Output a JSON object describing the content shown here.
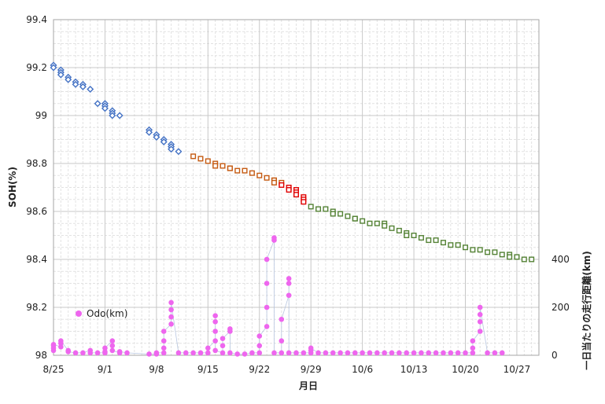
{
  "chart_data": {
    "type": "scatter",
    "xlabel": "月日",
    "ylabel": "SOH(%)",
    "y2label": "一日当たりの走行距離(km)",
    "x_range": [
      "8/25",
      "10/30"
    ],
    "x_tick_labels": [
      "8/25",
      "9/1",
      "9/8",
      "9/15",
      "9/22",
      "9/29",
      "10/6",
      "10/13",
      "10/20",
      "10/27"
    ],
    "ylim": [
      98,
      99.4
    ],
    "y_tick_labels": [
      "98",
      "98.2",
      "98.4",
      "98.6",
      "98.8",
      "99",
      "99.2",
      "99.4"
    ],
    "y2lim": [
      0,
      1400
    ],
    "y2_tick_labels": [
      "0",
      "200",
      "400"
    ],
    "grid": true,
    "legend": {
      "position": "bottom-left",
      "label": "Odo(km)"
    },
    "colors": {
      "soh_blue": "#4472c4",
      "soh_orange": "#c55a11",
      "soh_red": "#e00000",
      "soh_green": "#548235",
      "odo": "#ee66ee",
      "grid_major": "#c8c8c8",
      "grid_minor": "#e2e2e2"
    },
    "soh_series": [
      {
        "color": "blue",
        "points": [
          [
            "8/25",
            99.21
          ],
          [
            "8/25",
            99.2
          ],
          [
            "8/26",
            99.19
          ],
          [
            "8/26",
            99.18
          ],
          [
            "8/26",
            99.17
          ],
          [
            "8/27",
            99.16
          ],
          [
            "8/27",
            99.15
          ],
          [
            "8/28",
            99.14
          ],
          [
            "8/28",
            99.13
          ],
          [
            "8/29",
            99.13
          ],
          [
            "8/29",
            99.12
          ],
          [
            "8/30",
            99.11
          ],
          [
            "8/31",
            99.05
          ],
          [
            "9/1",
            99.05
          ],
          [
            "9/1",
            99.04
          ],
          [
            "9/1",
            99.03
          ],
          [
            "9/2",
            99.02
          ],
          [
            "9/2",
            99.01
          ],
          [
            "9/2",
            99.0
          ],
          [
            "9/3",
            99.0
          ],
          [
            "9/7",
            98.94
          ],
          [
            "9/7",
            98.93
          ],
          [
            "9/8",
            98.92
          ],
          [
            "9/8",
            98.91
          ],
          [
            "9/9",
            98.9
          ],
          [
            "9/9",
            98.89
          ],
          [
            "9/10",
            98.88
          ],
          [
            "9/10",
            98.87
          ],
          [
            "9/10",
            98.86
          ],
          [
            "9/11",
            98.85
          ]
        ]
      },
      {
        "color": "orange",
        "points": [
          [
            "9/13",
            98.83
          ],
          [
            "9/14",
            98.82
          ],
          [
            "9/15",
            98.81
          ],
          [
            "9/16",
            98.8
          ],
          [
            "9/16",
            98.79
          ],
          [
            "9/17",
            98.79
          ],
          [
            "9/18",
            98.78
          ],
          [
            "9/18",
            98.78
          ],
          [
            "9/19",
            98.77
          ],
          [
            "9/20",
            98.77
          ],
          [
            "9/21",
            98.76
          ],
          [
            "9/22",
            98.75
          ],
          [
            "9/23",
            98.74
          ],
          [
            "9/24",
            98.73
          ],
          [
            "9/24",
            98.73
          ],
          [
            "9/24",
            98.72
          ],
          [
            "9/25",
            98.72
          ]
        ]
      },
      {
        "color": "red",
        "points": [
          [
            "9/25",
            98.71
          ],
          [
            "9/26",
            98.7
          ],
          [
            "9/26",
            98.69
          ],
          [
            "9/27",
            98.69
          ],
          [
            "9/27",
            98.68
          ],
          [
            "9/27",
            98.67
          ],
          [
            "9/28",
            98.66
          ],
          [
            "9/28",
            98.65
          ],
          [
            "9/28",
            98.64
          ]
        ]
      },
      {
        "color": "green",
        "points": [
          [
            "9/29",
            98.62
          ],
          [
            "9/30",
            98.61
          ],
          [
            "10/1",
            98.61
          ],
          [
            "10/2",
            98.6
          ],
          [
            "10/2",
            98.59
          ],
          [
            "10/3",
            98.59
          ],
          [
            "10/4",
            98.58
          ],
          [
            "10/5",
            98.57
          ],
          [
            "10/5",
            98.57
          ],
          [
            "10/6",
            98.56
          ],
          [
            "10/7",
            98.55
          ],
          [
            "10/8",
            98.55
          ],
          [
            "10/9",
            98.55
          ],
          [
            "10/9",
            98.54
          ],
          [
            "10/10",
            98.53
          ],
          [
            "10/11",
            98.52
          ],
          [
            "10/12",
            98.51
          ],
          [
            "10/12",
            98.5
          ],
          [
            "10/13",
            98.5
          ],
          [
            "10/14",
            98.49
          ],
          [
            "10/15",
            98.48
          ],
          [
            "10/16",
            98.48
          ],
          [
            "10/17",
            98.47
          ],
          [
            "10/18",
            98.46
          ],
          [
            "10/19",
            98.46
          ],
          [
            "10/20",
            98.45
          ],
          [
            "10/21",
            98.44
          ],
          [
            "10/22",
            98.44
          ],
          [
            "10/23",
            98.43
          ],
          [
            "10/24",
            98.43
          ],
          [
            "10/25",
            98.42
          ],
          [
            "10/26",
            98.42
          ],
          [
            "10/26",
            98.41
          ],
          [
            "10/27",
            98.41
          ],
          [
            "10/27",
            98.41
          ],
          [
            "10/28",
            98.4
          ],
          [
            "10/29",
            98.4
          ]
        ]
      }
    ],
    "odo_series": {
      "name": "Odo(km)",
      "points": [
        [
          "8/25",
          20
        ],
        [
          "8/25",
          30
        ],
        [
          "8/25",
          40
        ],
        [
          "8/25",
          45
        ],
        [
          "8/26",
          35
        ],
        [
          "8/26",
          50
        ],
        [
          "8/26",
          60
        ],
        [
          "8/27",
          20
        ],
        [
          "8/27",
          15
        ],
        [
          "8/28",
          10
        ],
        [
          "8/29",
          10
        ],
        [
          "8/30",
          20
        ],
        [
          "8/30",
          10
        ],
        [
          "8/31",
          10
        ],
        [
          "9/1",
          10
        ],
        [
          "9/1",
          15
        ],
        [
          "9/1",
          30
        ],
        [
          "9/2",
          60
        ],
        [
          "9/2",
          40
        ],
        [
          "9/2",
          20
        ],
        [
          "9/3",
          10
        ],
        [
          "9/3",
          15
        ],
        [
          "9/4",
          10
        ],
        [
          "9/7",
          5
        ],
        [
          "9/8",
          5
        ],
        [
          "9/8",
          10
        ],
        [
          "9/9",
          10
        ],
        [
          "9/9",
          30
        ],
        [
          "9/9",
          60
        ],
        [
          "9/9",
          100
        ],
        [
          "9/10",
          130
        ],
        [
          "9/10",
          160
        ],
        [
          "9/10",
          190
        ],
        [
          "9/10",
          220
        ],
        [
          "9/11",
          10
        ],
        [
          "9/12",
          10
        ],
        [
          "9/13",
          10
        ],
        [
          "9/14",
          10
        ],
        [
          "9/15",
          10
        ],
        [
          "9/15",
          30
        ],
        [
          "9/16",
          60
        ],
        [
          "9/16",
          100
        ],
        [
          "9/16",
          140
        ],
        [
          "9/16",
          165
        ],
        [
          "9/16",
          20
        ],
        [
          "9/17",
          10
        ],
        [
          "9/17",
          40
        ],
        [
          "9/17",
          70
        ],
        [
          "9/18",
          100
        ],
        [
          "9/18",
          110
        ],
        [
          "9/18",
          10
        ],
        [
          "9/19",
          5
        ],
        [
          "9/20",
          5
        ],
        [
          "9/21",
          10
        ],
        [
          "9/22",
          10
        ],
        [
          "9/22",
          40
        ],
        [
          "9/22",
          80
        ],
        [
          "9/23",
          120
        ],
        [
          "9/23",
          200
        ],
        [
          "9/23",
          300
        ],
        [
          "9/23",
          400
        ],
        [
          "9/24",
          480
        ],
        [
          "9/24",
          490
        ],
        [
          "9/24",
          10
        ],
        [
          "9/25",
          10
        ],
        [
          "9/25",
          60
        ],
        [
          "9/25",
          150
        ],
        [
          "9/26",
          250
        ],
        [
          "9/26",
          300
        ],
        [
          "9/26",
          320
        ],
        [
          "9/26",
          10
        ],
        [
          "9/27",
          10
        ],
        [
          "9/28",
          10
        ],
        [
          "9/29",
          10
        ],
        [
          "9/29",
          20
        ],
        [
          "9/29",
          30
        ],
        [
          "9/30",
          10
        ],
        [
          "10/1",
          10
        ],
        [
          "10/2",
          10
        ],
        [
          "10/3",
          10
        ],
        [
          "10/4",
          10
        ],
        [
          "10/5",
          10
        ],
        [
          "10/6",
          10
        ],
        [
          "10/7",
          10
        ],
        [
          "10/8",
          10
        ],
        [
          "10/9",
          10
        ],
        [
          "10/10",
          10
        ],
        [
          "10/11",
          10
        ],
        [
          "10/12",
          10
        ],
        [
          "10/13",
          10
        ],
        [
          "10/14",
          10
        ],
        [
          "10/15",
          10
        ],
        [
          "10/16",
          10
        ],
        [
          "10/17",
          10
        ],
        [
          "10/18",
          10
        ],
        [
          "10/19",
          10
        ],
        [
          "10/20",
          10
        ],
        [
          "10/21",
          10
        ],
        [
          "10/21",
          30
        ],
        [
          "10/21",
          60
        ],
        [
          "10/22",
          100
        ],
        [
          "10/22",
          140
        ],
        [
          "10/22",
          170
        ],
        [
          "10/22",
          200
        ],
        [
          "10/23",
          10
        ],
        [
          "10/24",
          10
        ],
        [
          "10/25",
          10
        ]
      ]
    }
  }
}
